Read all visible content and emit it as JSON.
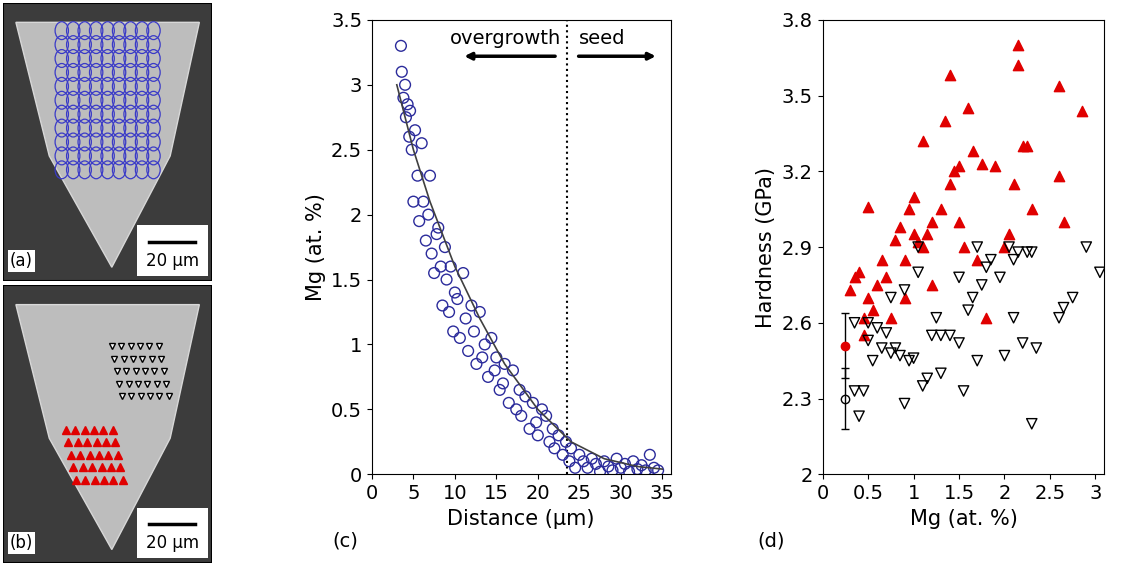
{
  "images": [
    {
      "label": "(a)",
      "scale_bar": "20 μm",
      "overlay_color": "#3a3ac8"
    },
    {
      "label": "(b)",
      "scale_bar": "20 μm",
      "overlay_colors": [
        "#000000",
        "#e00000"
      ]
    }
  ],
  "chart_data": [
    {
      "type": "scatter",
      "panel": "(c)",
      "xlabel": "Distance (μm)",
      "ylabel": "Mg (at. %)",
      "xlim": [
        0,
        36
      ],
      "xticks": [
        0,
        5,
        10,
        15,
        20,
        25,
        30,
        35
      ],
      "ylim": [
        0,
        3.5
      ],
      "yticks": [
        0,
        0.5,
        1,
        1.5,
        2,
        2.5,
        3,
        3.5
      ],
      "annotations": [
        "overgrowth",
        "seed"
      ],
      "boundary": 23.5,
      "series": [
        {
          "type": "scatter",
          "marker": "circle_open",
          "color": "#2b2b9b",
          "x": [
            3.5,
            3.6,
            3.8,
            4,
            4.1,
            4.3,
            4.5,
            4.6,
            4.8,
            5,
            5.2,
            5.5,
            5.7,
            6,
            6.2,
            6.5,
            6.8,
            7,
            7.2,
            7.5,
            7.8,
            8,
            8.3,
            8.5,
            8.8,
            9,
            9.3,
            9.5,
            9.8,
            10,
            10.3,
            10.6,
            11,
            11.3,
            11.6,
            12,
            12.3,
            12.6,
            13,
            13.3,
            13.6,
            14,
            14.4,
            14.8,
            15,
            15.4,
            15.8,
            16,
            16.5,
            17,
            17.4,
            17.8,
            18,
            18.5,
            19,
            19.4,
            19.8,
            20,
            20.5,
            21,
            21.4,
            21.8,
            22,
            22.5,
            23,
            23.4,
            23.8,
            24,
            24.5,
            25,
            25.5,
            26,
            26.5,
            27,
            27.5,
            28,
            28.5,
            29,
            29.5,
            30,
            30.5,
            31,
            31.5,
            32,
            32.5,
            33,
            33.5,
            34,
            34.5
          ],
          "values": [
            3.3,
            3.1,
            2.9,
            3.0,
            2.75,
            2.85,
            2.6,
            2.8,
            2.5,
            2.1,
            2.65,
            2.3,
            1.95,
            2.55,
            2.1,
            1.8,
            2.0,
            2.3,
            1.7,
            1.55,
            1.85,
            1.9,
            1.6,
            1.3,
            1.75,
            1.5,
            1.25,
            1.6,
            1.1,
            1.4,
            1.35,
            1.05,
            1.55,
            1.2,
            0.95,
            1.3,
            1.1,
            0.85,
            1.25,
            0.9,
            1.0,
            0.75,
            1.05,
            0.8,
            0.9,
            0.65,
            0.7,
            0.85,
            0.55,
            0.8,
            0.5,
            0.65,
            0.45,
            0.6,
            0.35,
            0.55,
            0.4,
            0.3,
            0.5,
            0.45,
            0.25,
            0.35,
            0.2,
            0.3,
            0.15,
            0.25,
            0.1,
            0.2,
            0.05,
            0.15,
            0.1,
            0.05,
            0.12,
            0.08,
            0.02,
            0.1,
            0.06,
            0.03,
            0.12,
            0.05,
            0.08,
            0.02,
            0.1,
            0.04,
            0.07,
            0.03,
            0.15,
            0.05,
            0.03
          ]
        },
        {
          "type": "line",
          "line_style": "solid",
          "color": "#404040",
          "x": [
            3,
            5,
            7,
            10,
            13,
            16,
            20,
            24,
            28,
            32,
            35
          ],
          "values": [
            3.0,
            2.5,
            2.1,
            1.6,
            1.2,
            0.85,
            0.5,
            0.25,
            0.12,
            0.06,
            0.04
          ]
        }
      ]
    },
    {
      "type": "scatter",
      "panel": "(d)",
      "xlabel": "Mg (at. %)",
      "ylabel": "Hardness (GPa)",
      "xlim": [
        0,
        3.1
      ],
      "xticks": [
        0,
        0.5,
        1,
        1.5,
        2,
        2.5,
        3
      ],
      "ylim": [
        2,
        3.8
      ],
      "yticks": [
        2,
        2.3,
        2.6,
        2.9,
        3.2,
        3.5,
        3.8
      ],
      "series": [
        {
          "type": "scatter",
          "marker": "triangle_up",
          "color": "#e00000",
          "x": [
            0.3,
            0.35,
            0.4,
            0.45,
            0.5,
            0.5,
            0.55,
            0.6,
            0.65,
            0.7,
            0.75,
            0.8,
            0.85,
            0.9,
            0.9,
            0.95,
            1.0,
            1.0,
            1.05,
            1.1,
            1.1,
            1.15,
            1.2,
            1.2,
            1.3,
            1.35,
            1.4,
            1.4,
            1.45,
            1.5,
            1.5,
            1.55,
            1.6,
            1.65,
            1.7,
            1.75,
            1.8,
            1.9,
            2.0,
            2.05,
            2.1,
            2.15,
            2.15,
            2.2,
            2.25,
            2.3,
            2.6,
            2.6,
            2.65,
            2.85,
            0.45
          ],
          "values": [
            2.73,
            2.78,
            2.8,
            2.62,
            3.06,
            2.7,
            2.65,
            2.75,
            2.85,
            2.78,
            2.62,
            2.93,
            2.98,
            2.7,
            2.85,
            3.05,
            3.1,
            2.95,
            2.92,
            2.9,
            3.32,
            2.95,
            3.0,
            2.75,
            3.05,
            3.4,
            3.15,
            3.58,
            3.2,
            3.22,
            3.0,
            2.9,
            3.45,
            3.28,
            2.85,
            3.23,
            2.62,
            3.22,
            2.9,
            2.95,
            3.15,
            3.7,
            3.62,
            3.3,
            3.3,
            3.05,
            3.54,
            3.18,
            3.0,
            3.44,
            2.55
          ]
        },
        {
          "type": "scatter",
          "marker": "triangle_down_open",
          "color": "#000000",
          "x": [
            0.35,
            0.4,
            0.45,
            0.5,
            0.5,
            0.55,
            0.6,
            0.65,
            0.7,
            0.75,
            0.75,
            0.8,
            0.85,
            0.9,
            0.9,
            0.95,
            1.0,
            1.05,
            1.1,
            1.15,
            1.2,
            1.25,
            1.3,
            1.3,
            1.4,
            1.5,
            1.5,
            1.55,
            1.6,
            1.65,
            1.7,
            1.7,
            1.75,
            1.8,
            1.85,
            1.95,
            2.0,
            2.05,
            2.1,
            2.15,
            2.2,
            2.25,
            2.3,
            2.3,
            2.35,
            2.1,
            2.6,
            2.65,
            2.75,
            2.9,
            3.05,
            1.05,
            0.35
          ],
          "values": [
            2.33,
            2.23,
            2.33,
            2.6,
            2.53,
            2.45,
            2.58,
            2.5,
            2.56,
            2.7,
            2.48,
            2.5,
            2.47,
            2.28,
            2.73,
            2.45,
            2.46,
            2.8,
            2.35,
            2.38,
            2.55,
            2.62,
            2.4,
            2.55,
            2.55,
            2.52,
            2.78,
            2.33,
            2.65,
            2.7,
            2.9,
            2.45,
            2.75,
            2.82,
            2.85,
            2.78,
            2.47,
            2.9,
            2.85,
            2.88,
            2.52,
            2.88,
            2.88,
            2.2,
            2.5,
            2.62,
            2.62,
            2.66,
            2.7,
            2.9,
            2.8,
            2.9,
            2.6
          ]
        },
        {
          "type": "errorbar",
          "marker": "circle",
          "color": "#e00000",
          "x": [
            0.25
          ],
          "values": [
            2.51
          ],
          "error": [
            0.13
          ]
        },
        {
          "type": "errorbar",
          "marker": "circle_open",
          "color": "#000000",
          "x": [
            0.25
          ],
          "values": [
            2.3
          ],
          "error": [
            0.12
          ]
        }
      ]
    }
  ]
}
